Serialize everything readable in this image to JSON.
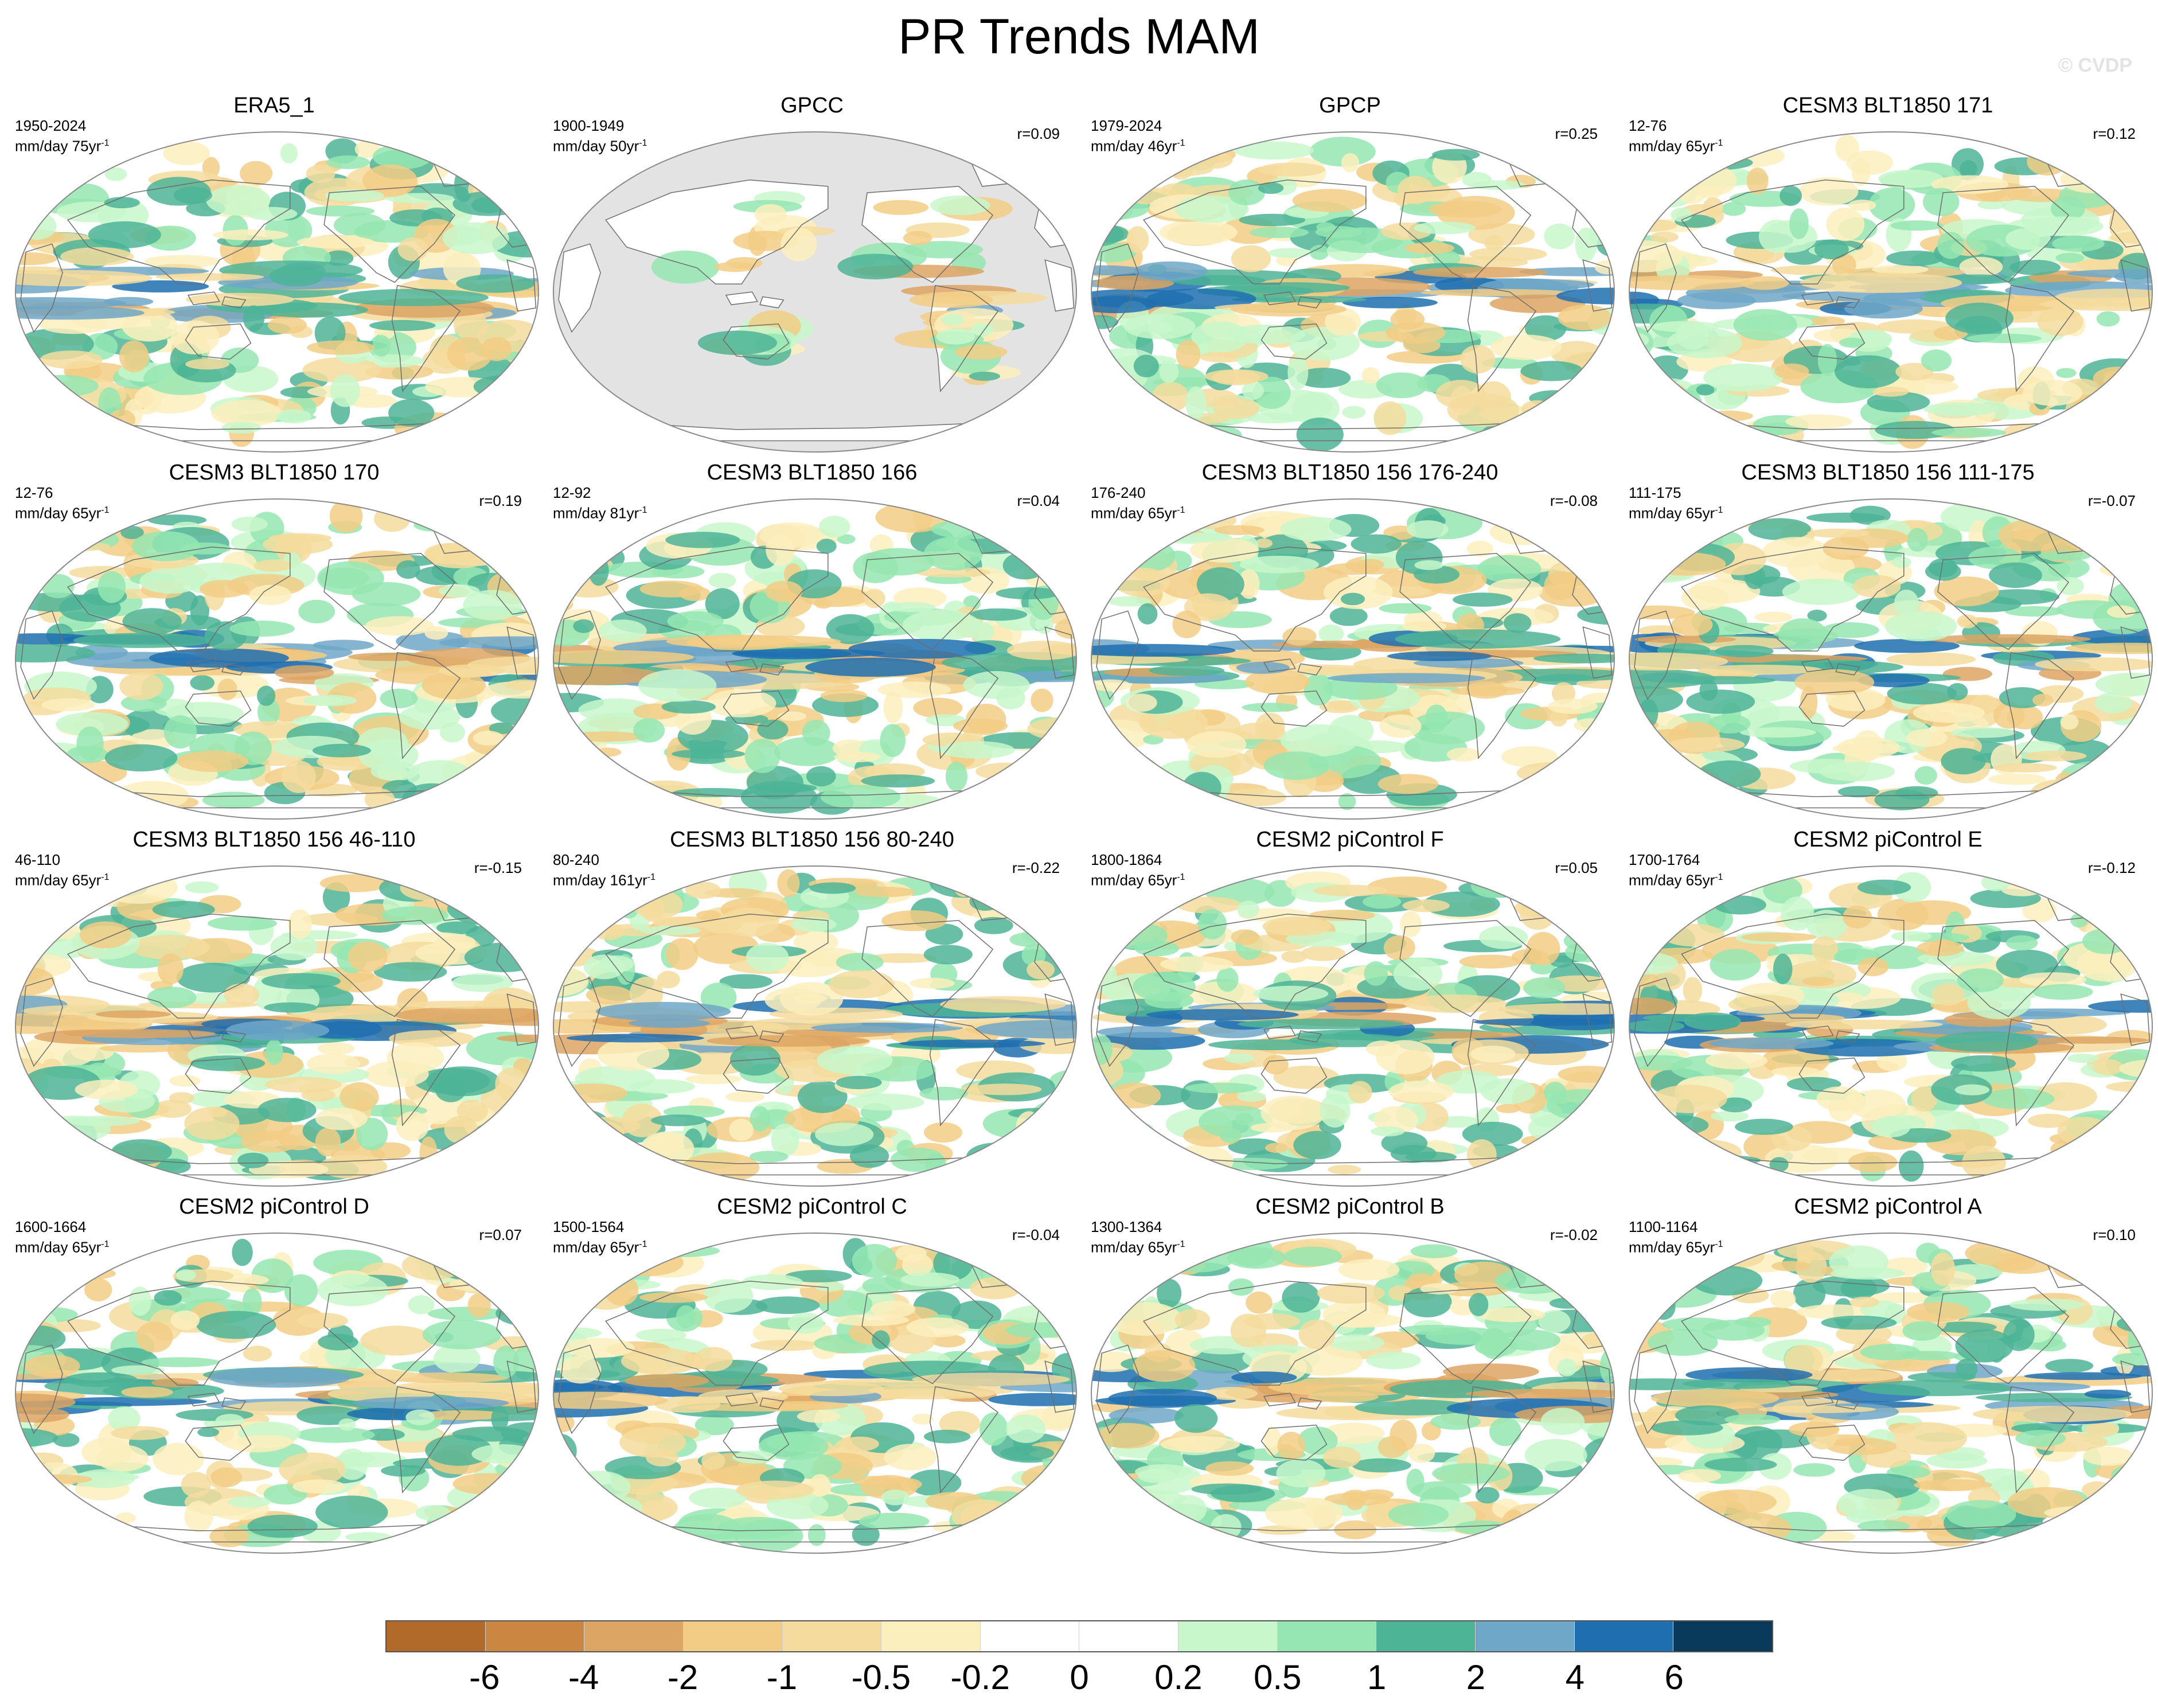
{
  "figure": {
    "title": "PR Trends MAM",
    "credit": "© CVDP",
    "units": "mm/day"
  },
  "panels": [
    {
      "title": "ERA5_1",
      "range": "1950-2024",
      "units": "mm/day 75yr",
      "corr": "",
      "observed_land_only": false
    },
    {
      "title": "GPCC",
      "range": "1900-1949",
      "units": "mm/day 50yr",
      "corr": "r=0.09",
      "observed_land_only": true
    },
    {
      "title": "GPCP",
      "range": "1979-2024",
      "units": "mm/day 46yr",
      "corr": "r=0.25",
      "observed_land_only": false
    },
    {
      "title": "CESM3 BLT1850 171",
      "range": "12-76",
      "units": "mm/day 65yr",
      "corr": "r=0.12",
      "observed_land_only": false
    },
    {
      "title": "CESM3 BLT1850 170",
      "range": "12-76",
      "units": "mm/day 65yr",
      "corr": "r=0.19",
      "observed_land_only": false
    },
    {
      "title": "CESM3 BLT1850 166",
      "range": "12-92",
      "units": "mm/day 81yr",
      "corr": "r=0.04",
      "observed_land_only": false
    },
    {
      "title": "CESM3 BLT1850 156 176-240",
      "range": "176-240",
      "units": "mm/day 65yr",
      "corr": "r=-0.08",
      "observed_land_only": false
    },
    {
      "title": "CESM3 BLT1850 156 111-175",
      "range": "111-175",
      "units": "mm/day 65yr",
      "corr": "r=-0.07",
      "observed_land_only": false
    },
    {
      "title": "CESM3 BLT1850 156 46-110",
      "range": "46-110",
      "units": "mm/day 65yr",
      "corr": "r=-0.15",
      "observed_land_only": false
    },
    {
      "title": "CESM3 BLT1850 156 80-240",
      "range": "80-240",
      "units": "mm/day 161yr",
      "corr": "r=-0.22",
      "observed_land_only": false
    },
    {
      "title": "CESM2 piControl F",
      "range": "1800-1864",
      "units": "mm/day 65yr",
      "corr": "r=0.05",
      "observed_land_only": false
    },
    {
      "title": "CESM2 piControl E",
      "range": "1700-1764",
      "units": "mm/day 65yr",
      "corr": "r=-0.12",
      "observed_land_only": false
    },
    {
      "title": "CESM2 piControl D",
      "range": "1600-1664",
      "units": "mm/day 65yr",
      "corr": "r=0.07",
      "observed_land_only": false
    },
    {
      "title": "CESM2 piControl C",
      "range": "1500-1564",
      "units": "mm/day 65yr",
      "corr": "r=-0.04",
      "observed_land_only": false
    },
    {
      "title": "CESM2 piControl B",
      "range": "1300-1364",
      "units": "mm/day 65yr",
      "corr": "r=-0.02",
      "observed_land_only": false
    },
    {
      "title": "CESM2 piControl A",
      "range": "1100-1164",
      "units": "mm/day 65yr",
      "corr": "r=0.10",
      "observed_land_only": false
    }
  ],
  "colorbar": {
    "labels": [
      "-6",
      "-4",
      "-2",
      "-1",
      "-0.5",
      "-0.2",
      "0",
      "0.2",
      "0.5",
      "1",
      "2",
      "4",
      "6"
    ],
    "colors": [
      "#b26a2a",
      "#cb8641",
      "#dda563",
      "#f2cc85",
      "#f5dc9e",
      "#fbefbd",
      "#ffffff",
      "#ffffff",
      "#c8f7cb",
      "#95e6b2",
      "#4db496",
      "#6ea7c8",
      "#1f6fb0",
      "#093a5c"
    ]
  },
  "style": {
    "ocean_missing": "#e3e3e3",
    "coastline": "#6e6e6e"
  }
}
